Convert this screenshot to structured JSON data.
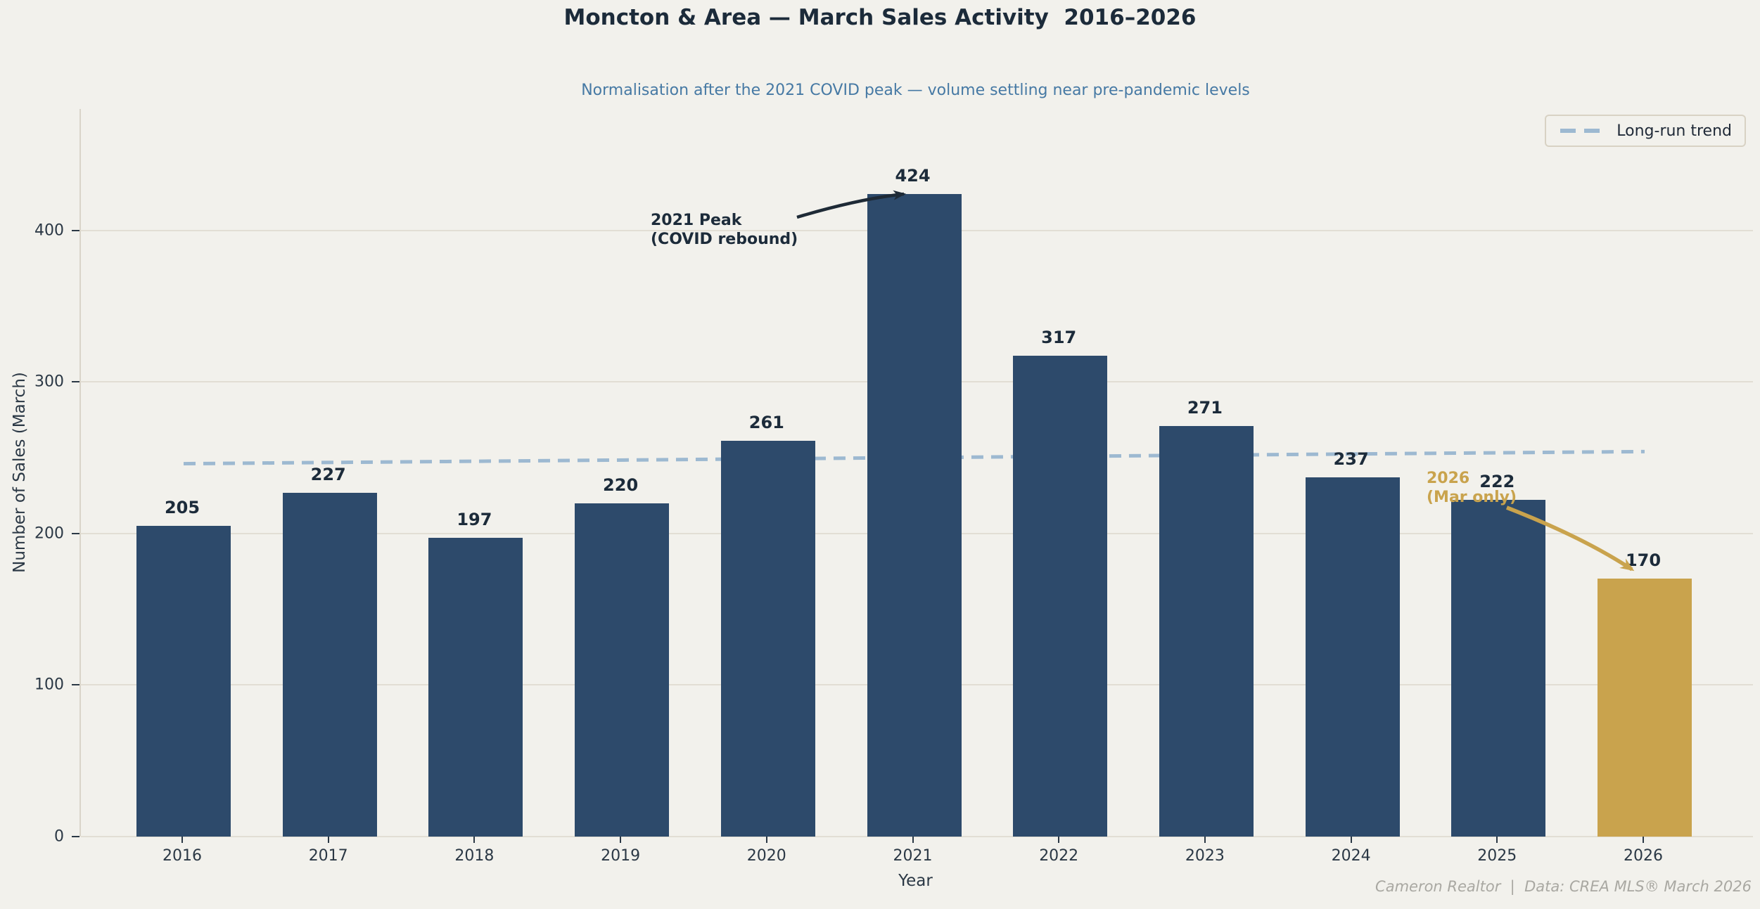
{
  "page": {
    "title": "Moncton & Area — March Sales Activity  2016–2026",
    "subtitle": "Normalisation after the 2021 COVID peak — volume settling near pre-pandemic levels",
    "footer": "Cameron Realtor  |  Data: CREA MLS® March 2026"
  },
  "legend": {
    "trend_label": "Long-run trend"
  },
  "colors": {
    "background": "#f2f1ec",
    "bar": "#2d4a6b",
    "bar_highlight": "#c9a34d",
    "title_text": "#1c2b3a",
    "subtitle_text": "#4679a4",
    "trend_line": "#9db9d1",
    "gridline": "#e2ded4",
    "annotation_dark": "#1e2a36",
    "annotation_gold": "#c9a34d",
    "footer_text": "#a9a8a2"
  },
  "chart_data": {
    "type": "bar",
    "title": "Moncton & Area — March Sales Activity  2016–2026",
    "subtitle": "Normalisation after the 2021 COVID peak — volume settling near pre-pandemic levels",
    "categories": [
      "2016",
      "2017",
      "2018",
      "2019",
      "2020",
      "2021",
      "2022",
      "2023",
      "2024",
      "2025",
      "2026"
    ],
    "values": [
      205,
      227,
      197,
      220,
      261,
      424,
      317,
      271,
      237,
      222,
      170
    ],
    "highlight_index": 10,
    "highlight_note": "2026 bar drawn in gold (March only, partial expectation)",
    "xlabel": "Year",
    "ylabel": "Number of Sales (March)",
    "yticks": [
      0,
      100,
      200,
      300,
      400
    ],
    "ylim": [
      0,
      480
    ],
    "grid": "horizontal",
    "legend_position": "upper right",
    "trend_line": {
      "label": "Long-run trend",
      "style": "dashed",
      "from_category": "2016",
      "to_category": "2026",
      "value_start": 246,
      "value_end": 254
    },
    "annotations": [
      {
        "text": "2021 Peak\n(COVID rebound)",
        "points_to": "2021",
        "value": 424,
        "color": "#1e2a36"
      },
      {
        "text": "2026\n(Mar only)",
        "points_to": "2026",
        "value": 170,
        "color": "#c9a34d"
      }
    ]
  }
}
